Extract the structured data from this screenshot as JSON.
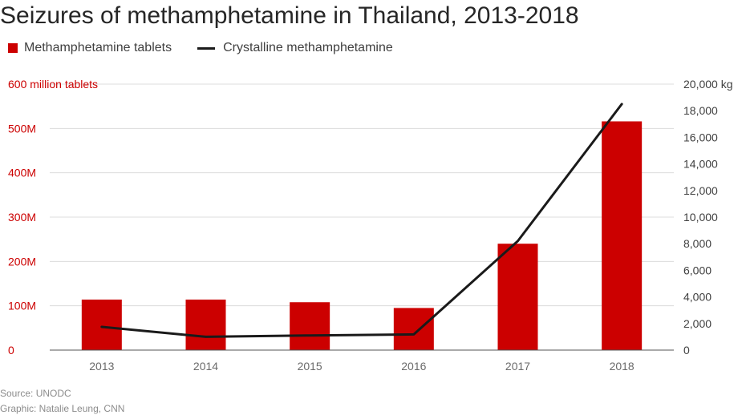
{
  "title": "Seizures of methamphetamine in Thailand, 2013-2018",
  "legend": {
    "bars_label": "Methamphetamine tablets",
    "line_label": "Crystalline methamphetamine"
  },
  "colors": {
    "bar": "#cc0000",
    "line": "#1a1a1a",
    "left_axis_text": "#cc0000",
    "right_axis_text": "#404040",
    "x_axis_text": "#6b6b6b",
    "grid": "#dcdcdc",
    "baseline": "#555555"
  },
  "chart_data": {
    "type": "bar",
    "categories": [
      "2013",
      "2014",
      "2015",
      "2016",
      "2017",
      "2018"
    ],
    "series": [
      {
        "name": "Methamphetamine tablets",
        "type": "bar",
        "axis": "left",
        "values": [
          114,
          114,
          108,
          95,
          240,
          516
        ]
      },
      {
        "name": "Crystalline methamphetamine",
        "type": "line",
        "axis": "right",
        "values": [
          1750,
          1000,
          1100,
          1180,
          8200,
          18500
        ]
      }
    ],
    "left_axis": {
      "range": [
        0,
        600
      ],
      "ticks": [
        0,
        100,
        200,
        300,
        400,
        500,
        600
      ],
      "tick_labels": [
        "0",
        "100M",
        "200M",
        "300M",
        "400M",
        "500M",
        "600 million tablets"
      ]
    },
    "right_axis": {
      "range": [
        0,
        20000
      ],
      "ticks": [
        0,
        2000,
        4000,
        6000,
        8000,
        10000,
        12000,
        14000,
        16000,
        18000,
        20000
      ],
      "tick_labels": [
        "0",
        "2,000",
        "4,000",
        "6,000",
        "8,000",
        "10,000",
        "12,000",
        "14,000",
        "16,000",
        "18,000",
        "20,000 kg"
      ]
    },
    "grid": true,
    "legend_position": "top-left"
  },
  "footer": {
    "source": "Source: UNODC",
    "credit": "Graphic: Natalie Leung, CNN"
  }
}
